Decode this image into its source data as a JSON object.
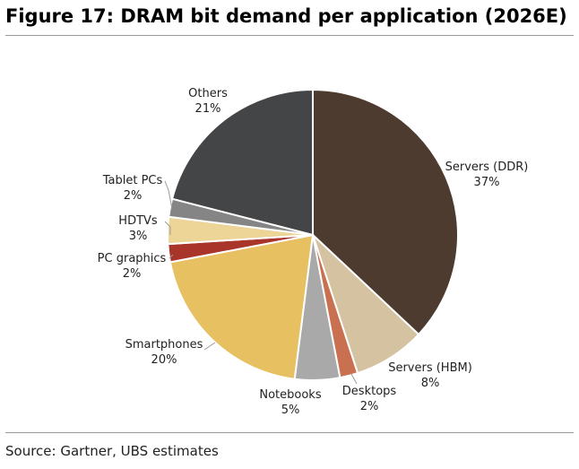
{
  "title": "Figure 17: DRAM bit demand per application (2026E)",
  "source": "Source: Gartner, UBS estimates",
  "chart_data": {
    "type": "pie",
    "title": "Figure 17: DRAM bit demand per application (2026E)",
    "start_angle_deg": 0,
    "direction": "clockwise",
    "slices": [
      {
        "name": "Servers (DDR)",
        "value": 37,
        "label": "37%",
        "color": "#4e3b2f"
      },
      {
        "name": "Servers (HBM)",
        "value": 8,
        "label": "8%",
        "color": "#d4c2a1"
      },
      {
        "name": "Desktops",
        "value": 2,
        "label": "2%",
        "color": "#c8704f"
      },
      {
        "name": "Notebooks",
        "value": 5,
        "label": "5%",
        "color": "#a9a9a9"
      },
      {
        "name": "Smartphones",
        "value": 20,
        "label": "20%",
        "color": "#e7c062"
      },
      {
        "name": "PC graphics",
        "value": 2,
        "label": "2%",
        "color": "#a8342a"
      },
      {
        "name": "HDTVs",
        "value": 3,
        "label": "3%",
        "color": "#ecd596"
      },
      {
        "name": "Tablet PCs",
        "value": 2,
        "label": "2%",
        "color": "#858585"
      },
      {
        "name": "Others",
        "value": 21,
        "label": "21%",
        "color": "#444547"
      }
    ]
  }
}
